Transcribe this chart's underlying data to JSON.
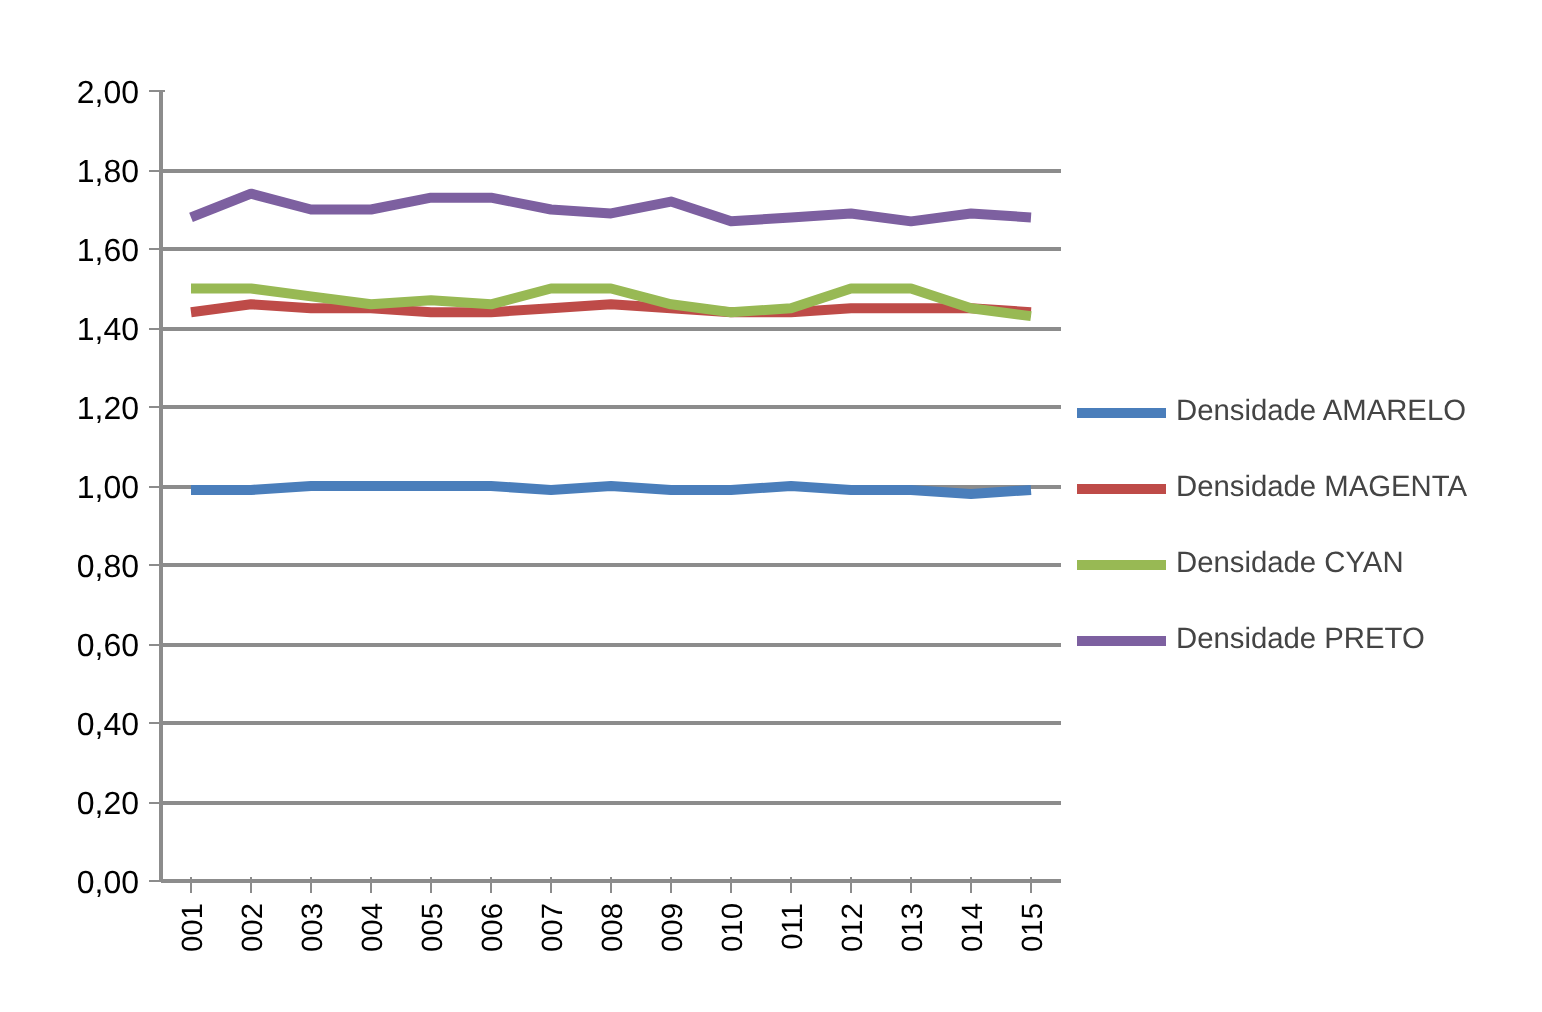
{
  "chart_data": {
    "type": "line",
    "categories": [
      "001",
      "002",
      "003",
      "004",
      "005",
      "006",
      "007",
      "008",
      "009",
      "010",
      "011",
      "012",
      "013",
      "014",
      "015"
    ],
    "series": [
      {
        "name": "Densidade AMARELO",
        "color": "#4a7ebb",
        "values": [
          0.99,
          0.99,
          1.0,
          1.0,
          1.0,
          1.0,
          0.99,
          1.0,
          0.99,
          0.99,
          1.0,
          0.99,
          0.99,
          0.98,
          0.99
        ]
      },
      {
        "name": "Densidade MAGENTA",
        "color": "#be4b48",
        "values": [
          1.44,
          1.46,
          1.45,
          1.45,
          1.44,
          1.44,
          1.45,
          1.46,
          1.45,
          1.44,
          1.44,
          1.45,
          1.45,
          1.45,
          1.44
        ]
      },
      {
        "name": "Densidade CYAN",
        "color": "#98b954",
        "values": [
          1.5,
          1.5,
          1.48,
          1.46,
          1.47,
          1.46,
          1.5,
          1.5,
          1.46,
          1.44,
          1.45,
          1.5,
          1.5,
          1.45,
          1.43
        ]
      },
      {
        "name": "Densidade PRETO",
        "color": "#7d60a0",
        "values": [
          1.68,
          1.74,
          1.7,
          1.7,
          1.73,
          1.73,
          1.7,
          1.69,
          1.72,
          1.67,
          1.68,
          1.69,
          1.67,
          1.69,
          1.68
        ]
      }
    ],
    "ylim": [
      0,
      2
    ],
    "yticks": [
      {
        "value": 0,
        "label": "0,00"
      },
      {
        "value": 0.2,
        "label": "0,20"
      },
      {
        "value": 0.4,
        "label": "0,40"
      },
      {
        "value": 0.6,
        "label": "0,60"
      },
      {
        "value": 0.8,
        "label": "0,80"
      },
      {
        "value": 1.0,
        "label": "1,00"
      },
      {
        "value": 1.2,
        "label": "1,20"
      },
      {
        "value": 1.4,
        "label": "1,40"
      },
      {
        "value": 1.6,
        "label": "1,60"
      },
      {
        "value": 1.8,
        "label": "1,80"
      },
      {
        "value": 2.0,
        "label": "2,00"
      }
    ],
    "grid": "y",
    "legend": "right",
    "line_style": "solid",
    "marker": "none"
  }
}
